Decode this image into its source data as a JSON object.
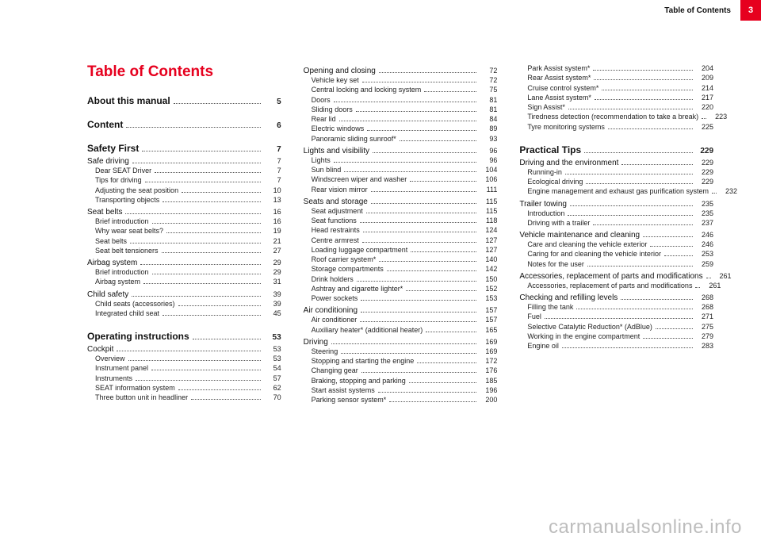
{
  "header": {
    "title": "Table of Contents",
    "page_number": "3",
    "accent_color": "#e6001e"
  },
  "main_title": "Table of Contents",
  "watermark": "carmanualsonline.info",
  "columns": [
    [
      {
        "level": 0,
        "label": "About this manual",
        "page": "5"
      },
      {
        "level": 0,
        "label": "Content",
        "page": "6"
      },
      {
        "level": 0,
        "label": "Safety First",
        "page": "7"
      },
      {
        "level": 1,
        "label": "Safe driving",
        "page": "7"
      },
      {
        "level": 2,
        "label": "Dear SEAT Driver",
        "page": "7"
      },
      {
        "level": 2,
        "label": "Tips for driving",
        "page": "7"
      },
      {
        "level": 2,
        "label": "Adjusting the seat position",
        "page": "10"
      },
      {
        "level": 2,
        "label": "Transporting objects",
        "page": "13"
      },
      {
        "level": 1,
        "label": "Seat belts",
        "page": "16"
      },
      {
        "level": 2,
        "label": "Brief introduction",
        "page": "16"
      },
      {
        "level": 2,
        "label": "Why wear seat belts?",
        "page": "19"
      },
      {
        "level": 2,
        "label": "Seat belts",
        "page": "21"
      },
      {
        "level": 2,
        "label": "Seat belt tensioners",
        "page": "27"
      },
      {
        "level": 1,
        "label": "Airbag system",
        "page": "29"
      },
      {
        "level": 2,
        "label": "Brief introduction",
        "page": "29"
      },
      {
        "level": 2,
        "label": "Airbag system",
        "page": "31"
      },
      {
        "level": 1,
        "label": "Child safety",
        "page": "39"
      },
      {
        "level": 2,
        "label": "Child seats (accessories)",
        "page": "39"
      },
      {
        "level": 2,
        "label": "Integrated child seat",
        "page": "45"
      },
      {
        "level": 0,
        "label": "Operating instructions",
        "page": "53"
      },
      {
        "level": 1,
        "label": "Cockpit",
        "page": "53"
      },
      {
        "level": 2,
        "label": "Overview",
        "page": "53"
      },
      {
        "level": 2,
        "label": "Instrument panel",
        "page": "54"
      },
      {
        "level": 2,
        "label": "Instruments",
        "page": "57"
      },
      {
        "level": 2,
        "label": "SEAT information system",
        "page": "62"
      },
      {
        "level": 2,
        "label": "Three button unit in headliner",
        "page": "70"
      }
    ],
    [
      {
        "level": 1,
        "label": "Opening and closing",
        "page": "72"
      },
      {
        "level": 2,
        "label": "Vehicle key set",
        "page": "72"
      },
      {
        "level": 2,
        "label": "Central locking and locking system",
        "page": "75"
      },
      {
        "level": 2,
        "label": "Doors",
        "page": "81"
      },
      {
        "level": 2,
        "label": "Sliding doors",
        "page": "81"
      },
      {
        "level": 2,
        "label": "Rear lid",
        "page": "84"
      },
      {
        "level": 2,
        "label": "Electric windows",
        "page": "89"
      },
      {
        "level": 2,
        "label": "Panoramic sliding sunroof*",
        "page": "93"
      },
      {
        "level": 1,
        "label": "Lights and visibility",
        "page": "96"
      },
      {
        "level": 2,
        "label": "Lights",
        "page": "96"
      },
      {
        "level": 2,
        "label": "Sun blind",
        "page": "104"
      },
      {
        "level": 2,
        "label": "Windscreen wiper and washer",
        "page": "106"
      },
      {
        "level": 2,
        "label": "Rear vision mirror",
        "page": "111"
      },
      {
        "level": 1,
        "label": "Seats and storage",
        "page": "115"
      },
      {
        "level": 2,
        "label": "Seat adjustment",
        "page": "115"
      },
      {
        "level": 2,
        "label": "Seat functions",
        "page": "118"
      },
      {
        "level": 2,
        "label": "Head restraints",
        "page": "124"
      },
      {
        "level": 2,
        "label": "Centre armrest",
        "page": "127"
      },
      {
        "level": 2,
        "label": "Loading luggage compartment",
        "page": "127"
      },
      {
        "level": 2,
        "label": "Roof carrier system*",
        "page": "140"
      },
      {
        "level": 2,
        "label": "Storage compartments",
        "page": "142"
      },
      {
        "level": 2,
        "label": "Drink holders",
        "page": "150"
      },
      {
        "level": 2,
        "label": "Ashtray and cigarette lighter*",
        "page": "152"
      },
      {
        "level": 2,
        "label": "Power sockets",
        "page": "153"
      },
      {
        "level": 1,
        "label": "Air conditioning",
        "page": "157"
      },
      {
        "level": 2,
        "label": "Air conditioner",
        "page": "157"
      },
      {
        "level": 2,
        "label": "Auxiliary heater* (additional heater)",
        "page": "165"
      },
      {
        "level": 1,
        "label": "Driving",
        "page": "169"
      },
      {
        "level": 2,
        "label": "Steering",
        "page": "169"
      },
      {
        "level": 2,
        "label": "Stopping and starting the engine",
        "page": "172"
      },
      {
        "level": 2,
        "label": "Changing gear",
        "page": "176"
      },
      {
        "level": 2,
        "label": "Braking, stopping and parking",
        "page": "185"
      },
      {
        "level": 2,
        "label": "Start assist systems",
        "page": "196"
      },
      {
        "level": 2,
        "label": "Parking sensor system*",
        "page": "200"
      }
    ],
    [
      {
        "level": 2,
        "label": "Park Assist system*",
        "page": "204"
      },
      {
        "level": 2,
        "label": "Rear Assist system*",
        "page": "209"
      },
      {
        "level": 2,
        "label": "Cruise control system*",
        "page": "214"
      },
      {
        "level": 2,
        "label": "Lane Assist system*",
        "page": "217"
      },
      {
        "level": 2,
        "label": "Sign Assist*",
        "page": "220"
      },
      {
        "level": 2,
        "label": "Tiredness detection (recommendation to take a break)",
        "page": "223"
      },
      {
        "level": 2,
        "label": "Tyre monitoring systems",
        "page": "225"
      },
      {
        "level": 0,
        "label": "Practical Tips",
        "page": "229"
      },
      {
        "level": 1,
        "label": "Driving and the environment",
        "page": "229"
      },
      {
        "level": 2,
        "label": "Running-in",
        "page": "229"
      },
      {
        "level": 2,
        "label": "Ecological driving",
        "page": "229"
      },
      {
        "level": 2,
        "label": "Engine management and exhaust gas purification system",
        "page": "232"
      },
      {
        "level": 1,
        "label": "Trailer towing",
        "page": "235"
      },
      {
        "level": 2,
        "label": "Introduction",
        "page": "235"
      },
      {
        "level": 2,
        "label": "Driving with a trailer",
        "page": "237"
      },
      {
        "level": 1,
        "label": "Vehicle maintenance and cleaning",
        "page": "246"
      },
      {
        "level": 2,
        "label": "Care and cleaning the vehicle exterior",
        "page": "246"
      },
      {
        "level": 2,
        "label": "Caring for and cleaning the vehicle interior",
        "page": "253"
      },
      {
        "level": 2,
        "label": "Notes for the user",
        "page": "259"
      },
      {
        "level": 1,
        "label": "Accessories, replacement of parts and modifications",
        "page": "261"
      },
      {
        "level": 2,
        "label": "Accessories, replacement of parts and modifications",
        "page": "261"
      },
      {
        "level": 1,
        "label": "Checking and refilling levels",
        "page": "268"
      },
      {
        "level": 2,
        "label": "Filling the tank",
        "page": "268"
      },
      {
        "level": 2,
        "label": "Fuel",
        "page": "271"
      },
      {
        "level": 2,
        "label": "Selective Catalytic Reduction* (AdBlue)",
        "page": "275"
      },
      {
        "level": 2,
        "label": "Working in the engine compartment",
        "page": "279"
      },
      {
        "level": 2,
        "label": "Engine oil",
        "page": "283"
      }
    ]
  ]
}
